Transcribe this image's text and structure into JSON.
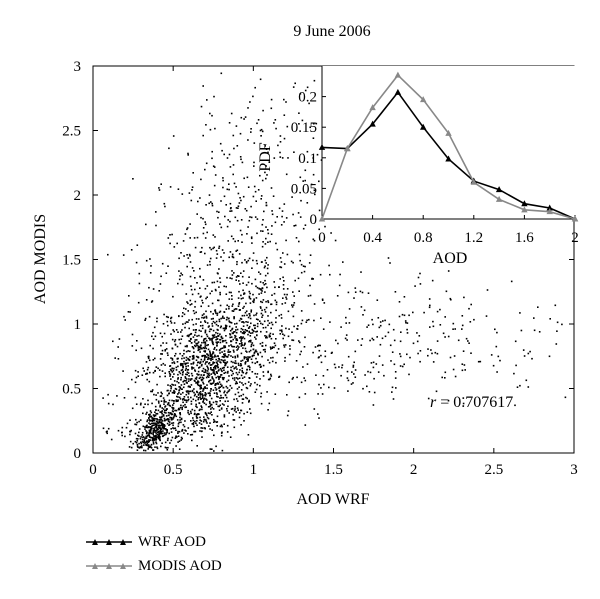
{
  "chart_data": [
    {
      "type": "scatter",
      "title": "9 June 2006",
      "xlabel": "AOD WRF",
      "ylabel": "AOD MODIS",
      "xlim": [
        0,
        3
      ],
      "ylim": [
        0,
        3
      ],
      "xticks": [
        "0",
        "0.5",
        "1",
        "1.5",
        "2",
        "2.5",
        "3"
      ],
      "yticks": [
        "0",
        "0.5",
        "1",
        "1.5",
        "2",
        "2.5",
        "3"
      ],
      "annotation": {
        "symbol": "r",
        "text": " = 0.707617"
      },
      "grid": false,
      "marker_color": "#000000",
      "clusters": [
        {
          "cx": 0.72,
          "cy": 0.62,
          "sx": 0.22,
          "sy": 0.32,
          "n": 1500,
          "rho": 0.55
        },
        {
          "cx": 0.38,
          "cy": 0.18,
          "sx": 0.06,
          "sy": 0.11,
          "n": 350,
          "rho": 0.6
        },
        {
          "cx": 0.85,
          "cy": 1.55,
          "sx": 0.25,
          "sy": 0.45,
          "n": 450,
          "rho": 0.1
        },
        {
          "cx": 1.55,
          "cy": 0.85,
          "sx": 0.45,
          "sy": 0.28,
          "n": 280,
          "rho": 0.0
        },
        {
          "cx": 2.3,
          "cy": 0.9,
          "sx": 0.4,
          "sy": 0.25,
          "n": 90,
          "rho": 0.0
        },
        {
          "cx": 0.45,
          "cy": 0.75,
          "sx": 0.18,
          "sy": 0.45,
          "n": 160,
          "rho": 0.2
        },
        {
          "cx": 1.2,
          "cy": 2.4,
          "sx": 0.3,
          "sy": 0.35,
          "n": 130,
          "rho": 0.0
        }
      ]
    },
    {
      "type": "line",
      "xlabel": "AOD",
      "ylabel": "PDF",
      "xlim": [
        0,
        2
      ],
      "ylim": [
        0,
        0.25
      ],
      "xticks": [
        "0",
        "0.4",
        "0.8",
        "1.2",
        "1.6",
        "2"
      ],
      "yticks": [
        "0",
        "0.05",
        "0.1",
        "0.15",
        "0.2"
      ],
      "x": [
        0,
        0.2,
        0.4,
        0.6,
        0.8,
        1.0,
        1.2,
        1.4,
        1.6,
        1.8,
        2.0
      ],
      "series": [
        {
          "name": "WRF AOD",
          "color": "#000000",
          "values": [
            0.117,
            0.115,
            0.155,
            0.207,
            0.15,
            0.098,
            0.062,
            0.048,
            0.025,
            0.018,
            0.0
          ]
        },
        {
          "name": "MODIS AOD",
          "color": "#888888",
          "values": [
            0.0,
            0.115,
            0.182,
            0.235,
            0.195,
            0.14,
            0.06,
            0.032,
            0.015,
            0.012,
            0.0
          ]
        }
      ],
      "legend_position": "bottom-left"
    }
  ]
}
